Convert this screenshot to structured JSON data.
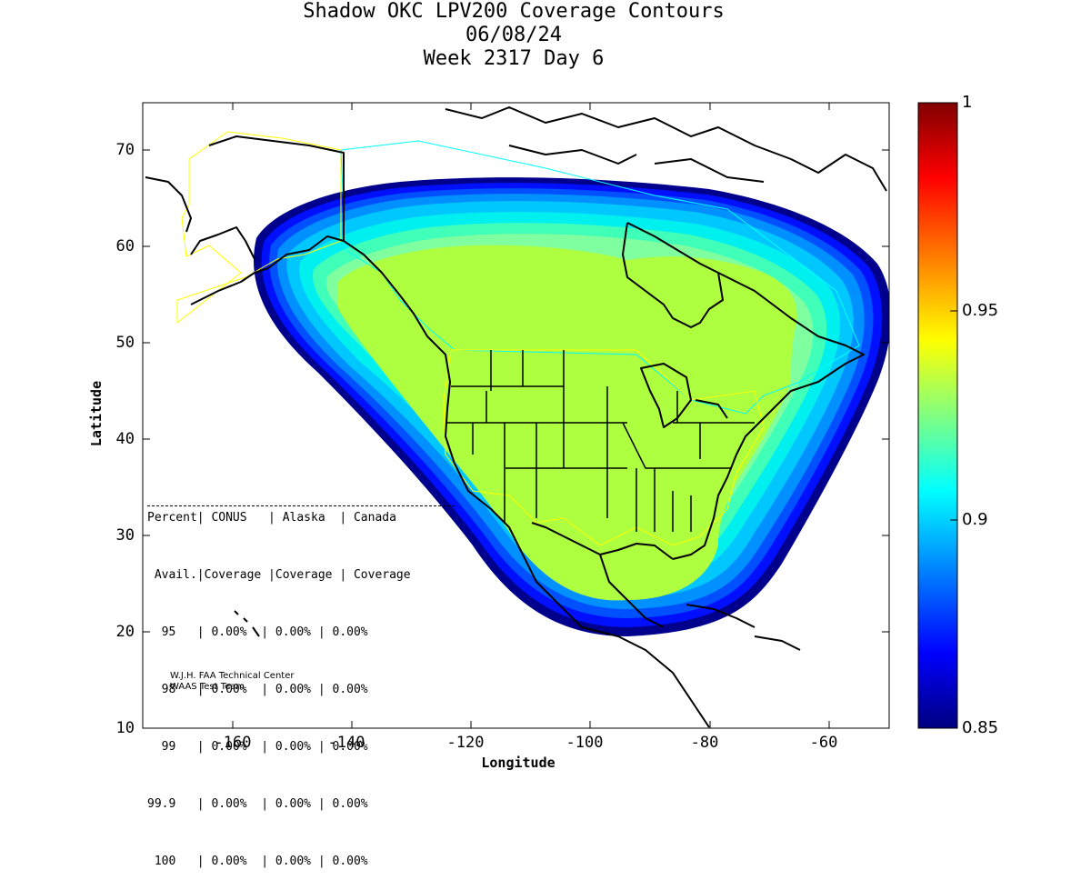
{
  "title": {
    "line1": "Shadow OKC LPV200 Coverage Contours",
    "line2": "06/08/24",
    "line3": "Week 2317 Day 6"
  },
  "axes": {
    "xlabel": "Longitude",
    "ylabel": "Latitude",
    "xticks": [
      "-160",
      "-140",
      "-120",
      "-100",
      "-80",
      "-60"
    ],
    "yticks": [
      "10",
      "20",
      "30",
      "40",
      "50",
      "60",
      "70"
    ]
  },
  "colorbar": {
    "labels": [
      "1",
      "0.95",
      "0.9",
      "0.85"
    ],
    "colors": [
      "#800000",
      "#ff0000",
      "#ff8000",
      "#ffff00",
      "#80ff80",
      "#00ffff",
      "#0080ff",
      "#0000ff",
      "#000080"
    ]
  },
  "stats": {
    "header1": "Percent| CONUS   | Alaska  | Canada",
    "header2": " Avail.|Coverage |Coverage | Coverage",
    "rows": [
      "  95   | 0.00%  | 0.00% | 0.00%",
      "  98   | 0.00%  | 0.00% | 0.00%",
      "  99   | 0.00%  | 0.00% | 0.00%",
      "99.9   | 0.00%  | 0.00% | 0.00%",
      " 100   | 0.00%  | 0.00% | 0.00%"
    ]
  },
  "credit": {
    "line1": "W.J.H. FAA Technical Center",
    "line2": "WAAS Test Team"
  },
  "map": {
    "lon_range": [
      -175,
      -50
    ],
    "lat_range": [
      10,
      75
    ],
    "coverage_colors": [
      "#00008c",
      "#0010ff",
      "#0050ff",
      "#0090ff",
      "#00c8ff",
      "#00f0f0",
      "#40ffb8",
      "#80ffa0",
      "#adff40"
    ]
  }
}
